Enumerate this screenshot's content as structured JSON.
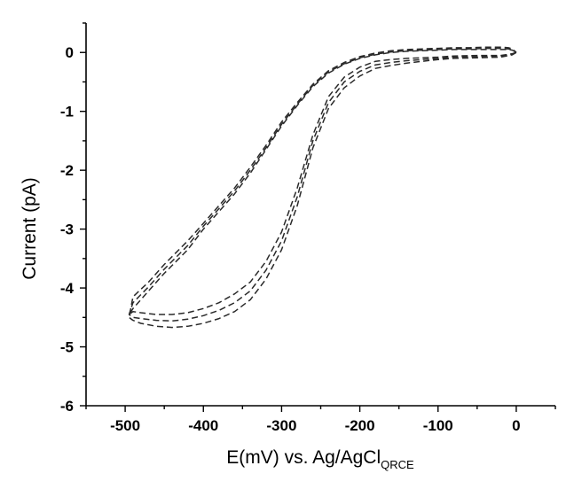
{
  "chart_data": {
    "type": "line",
    "xlabel": "E(mV) vs. Ag/AgCl",
    "xlabel_subscript": "QRCE",
    "ylabel": "Current (pA)",
    "xlim": [
      -550,
      50
    ],
    "ylim": [
      -6,
      0.5
    ],
    "x_ticks": [
      -500,
      -400,
      -300,
      -200,
      -100,
      0
    ],
    "y_ticks": [
      0,
      -1,
      -2,
      -3,
      -4,
      -5,
      -6
    ],
    "grid": false,
    "line_style": "dashed",
    "series": [
      {
        "x": [
          0,
          -5,
          -20,
          -50,
          -80,
          -100,
          -120,
          -140,
          -160,
          -180,
          -200,
          -220,
          -240,
          -260,
          -280,
          -300,
          -320,
          -340,
          -360,
          -380,
          -400,
          -420,
          -440,
          -460,
          -480,
          -490,
          -495,
          -490,
          -470,
          -450,
          -420,
          -400,
          -380,
          -360,
          -340,
          -320,
          -300,
          -280,
          -260,
          -240,
          -220,
          -200,
          -180,
          -160,
          -140,
          -120,
          -100,
          -80,
          -60,
          -40,
          -20,
          -10,
          -5,
          0
        ],
        "y": [
          0.0,
          -0.02,
          -0.05,
          -0.05,
          -0.06,
          -0.08,
          -0.09,
          -0.1,
          -0.12,
          -0.15,
          -0.25,
          -0.42,
          -0.75,
          -1.4,
          -2.3,
          -3.05,
          -3.55,
          -3.9,
          -4.1,
          -4.25,
          -4.35,
          -4.42,
          -4.45,
          -4.45,
          -4.42,
          -4.4,
          -4.45,
          -4.35,
          -4.05,
          -3.75,
          -3.35,
          -3.0,
          -2.7,
          -2.4,
          -2.05,
          -1.65,
          -1.25,
          -0.9,
          -0.58,
          -0.35,
          -0.2,
          -0.1,
          -0.04,
          0.0,
          0.02,
          0.03,
          0.04,
          0.05,
          0.05,
          0.05,
          0.05,
          0.05,
          0.04,
          0.0
        ]
      },
      {
        "x": [
          0,
          -5,
          -20,
          -50,
          -80,
          -100,
          -120,
          -140,
          -160,
          -180,
          -200,
          -220,
          -240,
          -260,
          -280,
          -300,
          -320,
          -340,
          -360,
          -380,
          -400,
          -420,
          -440,
          -460,
          -480,
          -490,
          -495,
          -490,
          -470,
          -450,
          -420,
          -400,
          -380,
          -360,
          -340,
          -320,
          -300,
          -280,
          -260,
          -240,
          -220,
          -200,
          -180,
          -160,
          -140,
          -120,
          -100,
          -80,
          -60,
          -40,
          -20,
          -10,
          -5,
          0
        ],
        "y": [
          0.0,
          -0.03,
          -0.06,
          -0.07,
          -0.08,
          -0.1,
          -0.12,
          -0.14,
          -0.17,
          -0.21,
          -0.32,
          -0.5,
          -0.85,
          -1.5,
          -2.45,
          -3.2,
          -3.7,
          -4.05,
          -4.25,
          -4.38,
          -4.47,
          -4.53,
          -4.56,
          -4.55,
          -4.52,
          -4.5,
          -4.45,
          -4.25,
          -3.98,
          -3.68,
          -3.28,
          -2.95,
          -2.65,
          -2.35,
          -2.0,
          -1.62,
          -1.22,
          -0.88,
          -0.56,
          -0.33,
          -0.19,
          -0.09,
          -0.03,
          0.01,
          0.03,
          0.04,
          0.05,
          0.06,
          0.06,
          0.07,
          0.07,
          0.06,
          0.05,
          0.0
        ]
      },
      {
        "x": [
          0,
          -5,
          -20,
          -50,
          -80,
          -100,
          -120,
          -140,
          -160,
          -180,
          -200,
          -220,
          -240,
          -260,
          -280,
          -300,
          -320,
          -340,
          -360,
          -380,
          -400,
          -420,
          -440,
          -460,
          -480,
          -490,
          -495,
          -490,
          -470,
          -450,
          -420,
          -400,
          -380,
          -360,
          -340,
          -320,
          -300,
          -280,
          -260,
          -240,
          -220,
          -200,
          -180,
          -160,
          -140,
          -120,
          -100,
          -80,
          -60,
          -40,
          -20,
          -10,
          -5,
          0
        ],
        "y": [
          0.0,
          -0.04,
          -0.08,
          -0.09,
          -0.1,
          -0.12,
          -0.15,
          -0.18,
          -0.22,
          -0.27,
          -0.4,
          -0.6,
          -0.95,
          -1.62,
          -2.6,
          -3.35,
          -3.85,
          -4.2,
          -4.4,
          -4.52,
          -4.6,
          -4.65,
          -4.67,
          -4.65,
          -4.6,
          -4.55,
          -4.5,
          -4.15,
          -3.9,
          -3.6,
          -3.2,
          -2.9,
          -2.6,
          -2.3,
          -1.95,
          -1.58,
          -1.18,
          -0.85,
          -0.54,
          -0.31,
          -0.17,
          -0.07,
          -0.01,
          0.03,
          0.05,
          0.06,
          0.07,
          0.08,
          0.08,
          0.09,
          0.09,
          0.08,
          0.06,
          0.0
        ]
      }
    ]
  }
}
